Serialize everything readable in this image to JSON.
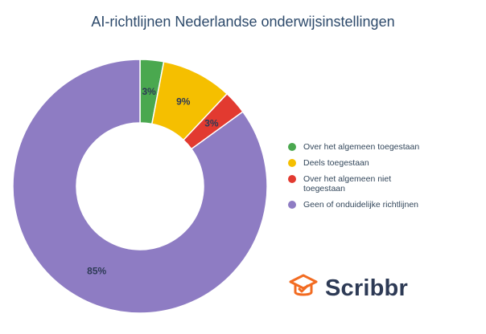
{
  "title": "AI-richtlijnen Nederlandse onderwijsinstellingen",
  "chart_data": {
    "type": "pie",
    "title": "AI-richtlijnen Nederlandse onderwijsinstellingen",
    "donut": true,
    "categories": [
      "Over het algemeen toegestaan",
      "Deels toegestaan",
      "Over het algemeen niet toegestaan",
      "Geen of onduidelijke richtlijnen"
    ],
    "values": [
      3,
      9,
      3,
      85
    ],
    "labels": [
      "3%",
      "9%",
      "3%",
      "85%"
    ],
    "colors": [
      "#4aa84f",
      "#f5bf00",
      "#e23a30",
      "#8e7cc3"
    ],
    "legend_position": "right"
  },
  "logo": {
    "text": "Scribbr",
    "icon": "graduation-cap-icon",
    "color": "#f26b21"
  }
}
